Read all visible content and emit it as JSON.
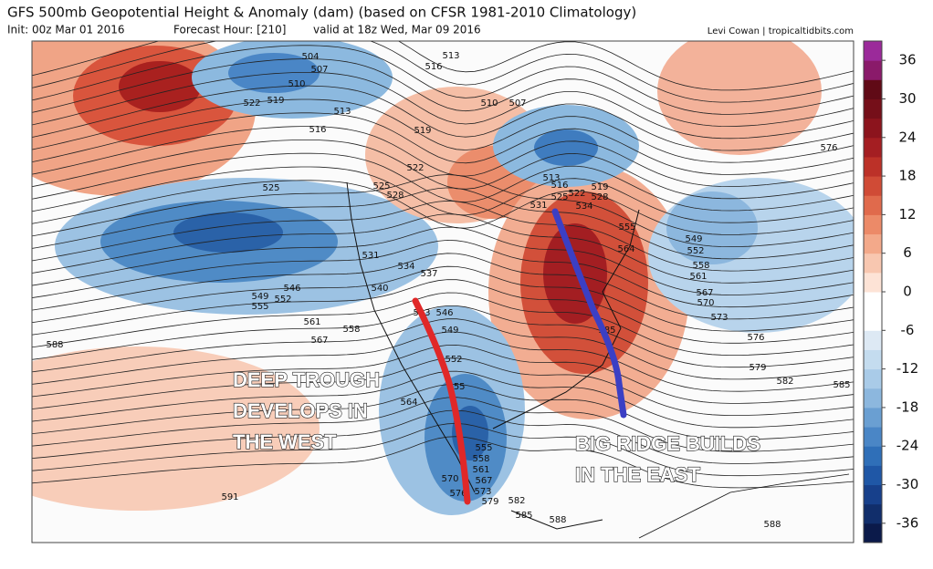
{
  "header": {
    "title": "GFS 500mb Geopotential Height & Anomaly (dam) (based on CFSR 1981-2010 Climatology)",
    "init": "Init: 00z Mar 01 2016",
    "forecast_hour": "Forecast Hour: [210]",
    "valid": "valid at 18z Wed, Mar 09 2016",
    "credit": "Levi Cowan | tropicaltidbits.com"
  },
  "annotations": [
    {
      "lines": [
        "DEEP TROUGH",
        "DEVELOPS IN",
        "THE WEST"
      ],
      "color": "#e02828"
    },
    {
      "lines": [
        "BIG RIDGE BUILDS",
        "IN THE EAST"
      ],
      "color": "#3b3fc4"
    }
  ],
  "colorbar": {
    "lim": [
      -39,
      39
    ],
    "ticks": [
      36,
      30,
      24,
      18,
      12,
      6,
      0,
      -6,
      -12,
      -18,
      -24,
      -30,
      -36
    ],
    "colors": [
      "#0b1a4a",
      "#112e6b",
      "#17408b",
      "#1f57a6",
      "#2f6fb8",
      "#4a86c6",
      "#6a9fd2",
      "#8cb7de",
      "#a9cbe8",
      "#c4dcef",
      "#dde9f4",
      "#ffffff",
      "#ffffff",
      "#fde3d6",
      "#f8c7b0",
      "#f3a98a",
      "#ec8a68",
      "#e06a4c",
      "#d04b36",
      "#bc3128",
      "#a41e22",
      "#8c141d",
      "#750f19",
      "#600a16",
      "#8a1a6a",
      "#9b2a9a"
    ]
  },
  "contour_labels": [
    504,
    507,
    510,
    519,
    522,
    513,
    516,
    525,
    516,
    513,
    510,
    507,
    519,
    522,
    525,
    528,
    531,
    534,
    537,
    540,
    543,
    546,
    549,
    552,
    555,
    564,
    561,
    558,
    567,
    546,
    549,
    552,
    555,
    588,
    591,
    576,
    549,
    552,
    555,
    558,
    561,
    564,
    567,
    570,
    573,
    576,
    579,
    582,
    585,
    585,
    513,
    516,
    519,
    522,
    525,
    528,
    531,
    534,
    555,
    558,
    561,
    567,
    570,
    573,
    576,
    579,
    582,
    585,
    588,
    588
  ]
}
